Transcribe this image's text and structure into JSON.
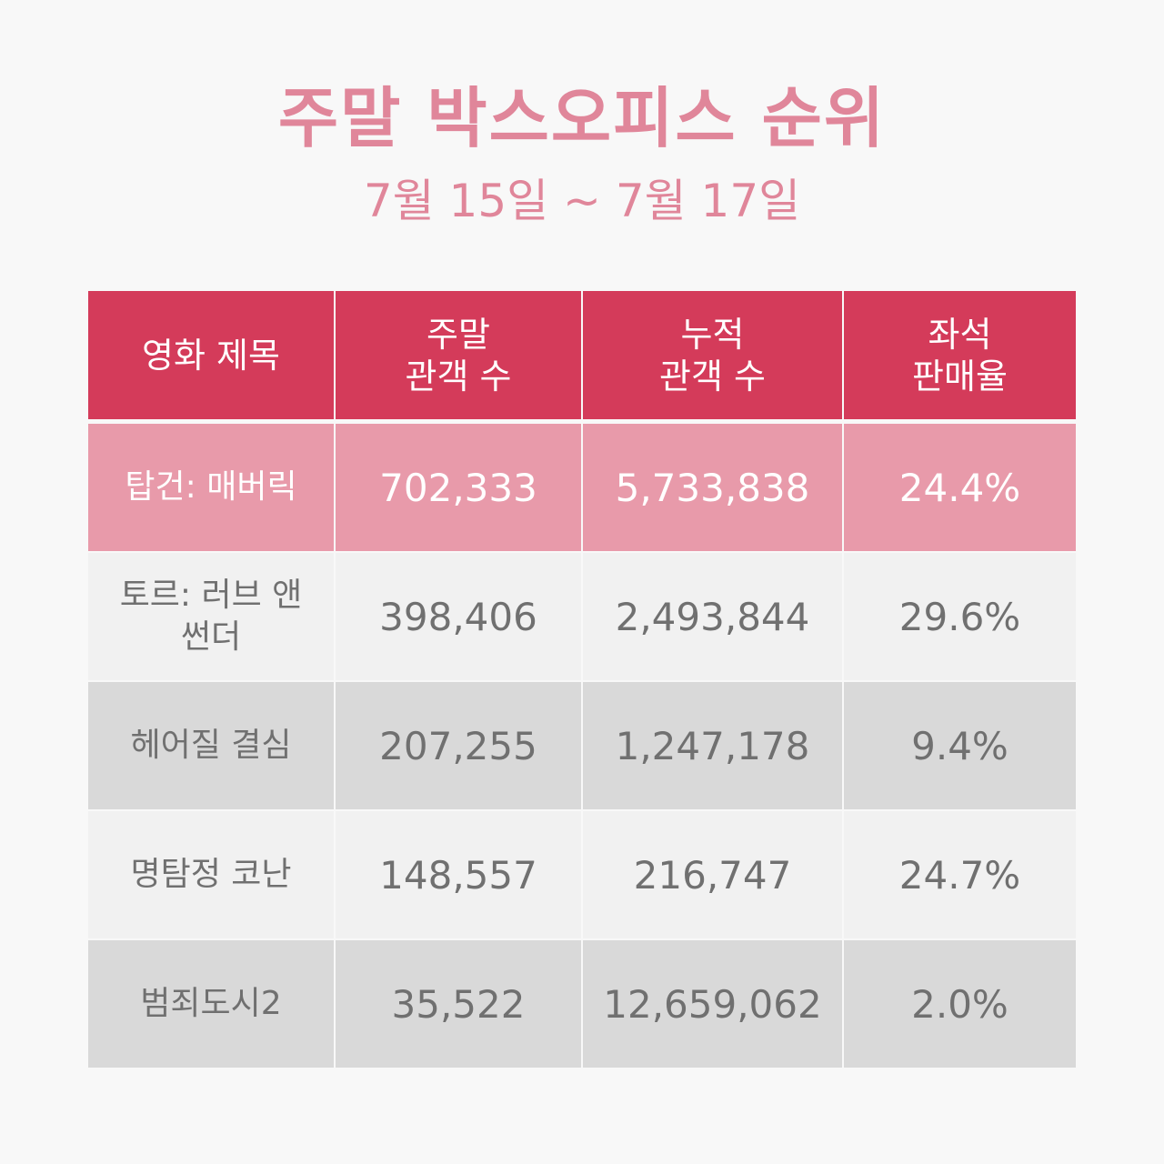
{
  "header": {
    "title": "주말 박스오피스 순위",
    "subtitle": "7월 15일 ~ 7월 17일"
  },
  "colors": {
    "title": "#e0869a",
    "header_bg": "#d43b5a",
    "highlight_row_bg": "#e89aaa",
    "light_row_bg": "#f1f1f1",
    "dark_row_bg": "#d9d9d9",
    "body_text": "#707070"
  },
  "table": {
    "columns": [
      {
        "label": "영화 제목"
      },
      {
        "label": "주말\n관객 수"
      },
      {
        "label": "누적\n관객 수"
      },
      {
        "label": "좌석\n판매율"
      }
    ],
    "rows": [
      {
        "title": "탑건: 매버릭",
        "weekend": "702,333",
        "cumulative": "5,733,838",
        "seat_rate": "24.4%"
      },
      {
        "title": "토르: 러브 앤 썬더",
        "weekend": "398,406",
        "cumulative": "2,493,844",
        "seat_rate": "29.6%"
      },
      {
        "title": "헤어질 결심",
        "weekend": "207,255",
        "cumulative": "1,247,178",
        "seat_rate": "9.4%"
      },
      {
        "title": "명탐정 코난",
        "weekend": "148,557",
        "cumulative": "216,747",
        "seat_rate": "24.7%"
      },
      {
        "title": "범죄도시2",
        "weekend": "35,522",
        "cumulative": "12,659,062",
        "seat_rate": "2.0%"
      }
    ]
  }
}
